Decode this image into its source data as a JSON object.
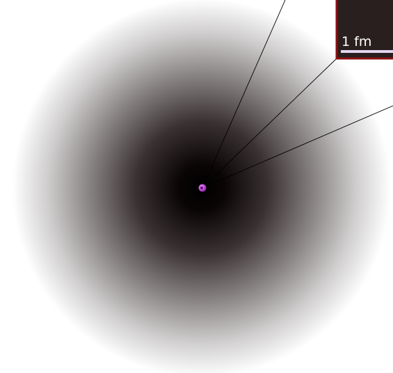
{
  "inset": {
    "scale_bar_label": "1 fm",
    "frame_color": "#8b1010",
    "background_color": "#2a1f1f",
    "scale_bar_color": "#e6d6f0"
  },
  "atom": {
    "cloud_center_color": "#000000",
    "cloud_edge_color": "#ffffff",
    "nucleus_color": "#c040d0"
  },
  "leader_lines": {
    "count": 3,
    "color": "#000000"
  }
}
